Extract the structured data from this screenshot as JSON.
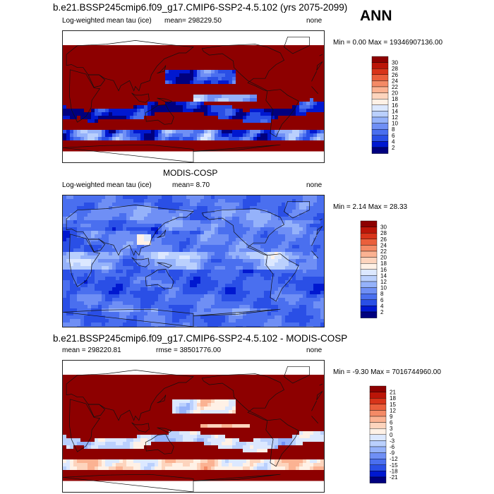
{
  "season": "ANN",
  "colors": {
    "sequential": [
      "#00007f",
      "#0018d0",
      "#2a4fe6",
      "#4a6fef",
      "#6f8ff5",
      "#95b2fa",
      "#bad0fd",
      "#dce8ff",
      "#fff1e6",
      "#fdd4bd",
      "#fbb292",
      "#f48a66",
      "#ea5f3c",
      "#d8341a",
      "#bb1508",
      "#8d0000"
    ],
    "diverging": [
      "#00007f",
      "#0018d0",
      "#2a4fe6",
      "#4a6fef",
      "#6f8ff5",
      "#95b2fa",
      "#bad0fd",
      "#dce8ff",
      "#fff1e6",
      "#fdd4bd",
      "#fbb292",
      "#f48a66",
      "#ea5f3c",
      "#d8341a",
      "#bb1508",
      "#8d0000"
    ]
  },
  "panels": [
    {
      "title": "b.e21.BSSP245cmip6.f09_g17.CMIP6-SSP2-4.5.102 (yrs 2075-2099)",
      "left_label": "Log-weighted mean tau (ice)",
      "center_label": "mean= 298229.50",
      "right_label": "none",
      "minmax": "Min =   0.00 Max = 19346907136.00",
      "field": "model",
      "colorbar": [
        "30",
        "28",
        "26",
        "24",
        "22",
        "20",
        "18",
        "16",
        "14",
        "12",
        "10",
        "8",
        "6",
        "4",
        "2"
      ]
    },
    {
      "title": "MODIS-COSP",
      "left_label": "Log-weighted mean tau (ice)",
      "center_label": "mean=   8.70",
      "right_label": "none",
      "minmax": "Min =  2.14 Max =  28.33",
      "field": "obs",
      "colorbar": [
        "30",
        "28",
        "26",
        "24",
        "22",
        "20",
        "18",
        "16",
        "14",
        "12",
        "10",
        "8",
        "6",
        "4",
        "2"
      ]
    },
    {
      "title": "b.e21.BSSP245cmip6.f09_g17.CMIP6-SSP2-4.5.102 - MODIS-COSP",
      "left_label": "mean = 298220.81",
      "center_label": "rmse = 38501776.00",
      "right_label": "none",
      "minmax": "Min =  -9.30 Max = 7016744960.00",
      "field": "diff",
      "colorbar": [
        "21",
        "18",
        "15",
        "12",
        "9",
        "6",
        "3",
        "0",
        "-3",
        "-6",
        "-9",
        "-12",
        "-15",
        "-18",
        "-21"
      ]
    }
  ],
  "chart_data": [
    {
      "type": "heatmap",
      "title": "b.e21.BSSP245cmip6.f09_g17.CMIP6-SSP2-4.5.102 (yrs 2075-2099)",
      "variable": "Log-weighted mean tau (ice)",
      "mean": 298229.5,
      "min": 0.0,
      "max": 19346907136.0,
      "units": "none",
      "levels": [
        2,
        4,
        6,
        8,
        10,
        12,
        14,
        16,
        18,
        20,
        22,
        24,
        26,
        28,
        30
      ]
    },
    {
      "type": "heatmap",
      "title": "MODIS-COSP",
      "variable": "Log-weighted mean tau (ice)",
      "mean": 8.7,
      "min": 2.14,
      "max": 28.33,
      "units": "none",
      "levels": [
        2,
        4,
        6,
        8,
        10,
        12,
        14,
        16,
        18,
        20,
        22,
        24,
        26,
        28,
        30
      ]
    },
    {
      "type": "heatmap",
      "title": "b.e21.BSSP245cmip6.f09_g17.CMIP6-SSP2-4.5.102 - MODIS-COSP",
      "mean": 298220.81,
      "rmse": 38501776.0,
      "min": -9.3,
      "max": 7016744960.0,
      "units": "none",
      "levels": [
        -21,
        -18,
        -15,
        -12,
        -9,
        -6,
        -3,
        0,
        3,
        6,
        9,
        12,
        15,
        18,
        21
      ]
    }
  ]
}
